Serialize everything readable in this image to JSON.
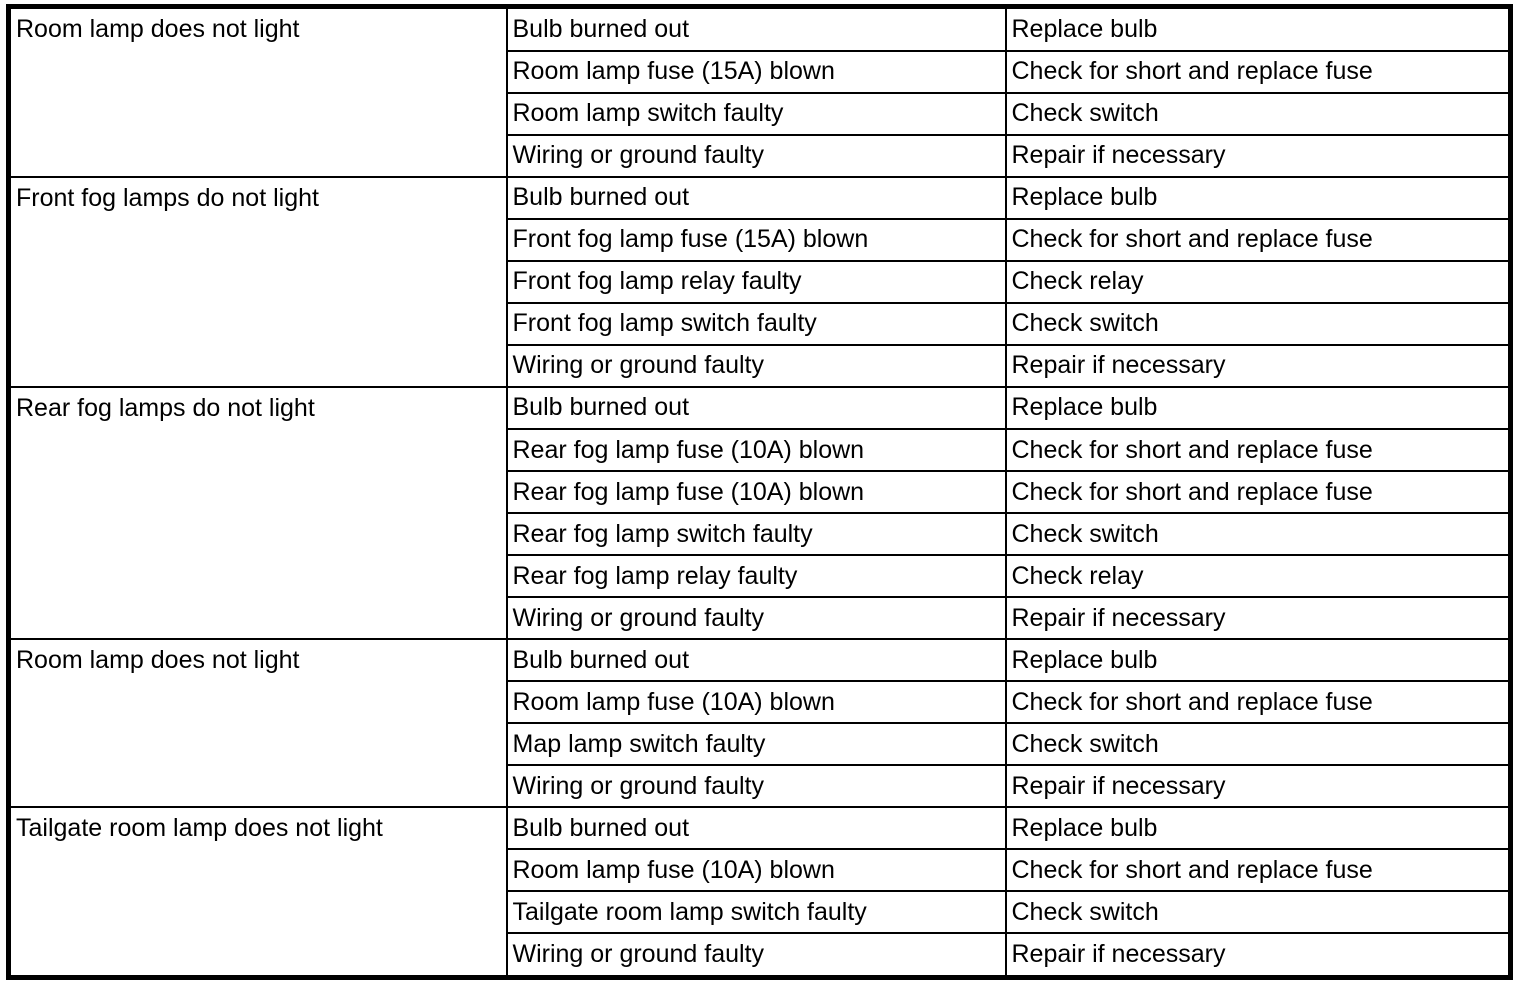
{
  "page": {
    "background_color": "#ffffff",
    "border_color": "#000000"
  },
  "table": {
    "columns": [
      "symptom",
      "probable_cause",
      "remedy"
    ],
    "sections": [
      {
        "symptom": "Room lamp does not light",
        "rows": [
          {
            "cause": "Bulb burned out",
            "remedy": "Replace bulb"
          },
          {
            "cause": "Room lamp fuse (15A) blown",
            "remedy": "Check for short and replace fuse"
          },
          {
            "cause": "Room lamp switch faulty",
            "remedy": "Check switch"
          },
          {
            "cause": "Wiring or ground faulty",
            "remedy": "Repair if necessary"
          }
        ]
      },
      {
        "symptom": "Front fog lamps do not light",
        "rows": [
          {
            "cause": "Bulb burned out",
            "remedy": "Replace bulb"
          },
          {
            "cause": "Front fog lamp fuse (15A) blown",
            "remedy": "Check for short and replace fuse"
          },
          {
            "cause": "Front fog lamp relay faulty",
            "remedy": "Check relay"
          },
          {
            "cause": "Front fog lamp switch faulty",
            "remedy": "Check switch"
          },
          {
            "cause": "Wiring or ground faulty",
            "remedy": "Repair if necessary"
          }
        ]
      },
      {
        "symptom": "Rear fog lamps do not light",
        "rows": [
          {
            "cause": "Bulb burned out",
            "remedy": "Replace bulb"
          },
          {
            "cause": "Rear fog lamp fuse (10A) blown",
            "remedy": "Check for short and replace fuse"
          },
          {
            "cause": "Rear fog lamp fuse (10A) blown",
            "remedy": "Check for short and replace fuse"
          },
          {
            "cause": "Rear fog lamp switch faulty",
            "remedy": "Check switch"
          },
          {
            "cause": "Rear fog lamp relay faulty",
            "remedy": "Check relay"
          },
          {
            "cause": "Wiring or ground faulty",
            "remedy": "Repair if necessary"
          }
        ]
      },
      {
        "symptom": "Room lamp does not light",
        "rows": [
          {
            "cause": "Bulb burned out",
            "remedy": "Replace bulb"
          },
          {
            "cause": "Room lamp fuse (10A) blown",
            "remedy": "Check for short and replace fuse"
          },
          {
            "cause": "Map lamp switch faulty",
            "remedy": "Check switch"
          },
          {
            "cause": "Wiring or ground faulty",
            "remedy": "Repair if necessary"
          }
        ]
      },
      {
        "symptom": "Tailgate room lamp does not light",
        "rows": [
          {
            "cause": "Bulb burned out",
            "remedy": "Replace bulb"
          },
          {
            "cause": "Room lamp fuse (10A) blown",
            "remedy": "Check for short and replace fuse"
          },
          {
            "cause": "Tailgate room lamp switch faulty",
            "remedy": "Check switch"
          },
          {
            "cause": "Wiring or ground faulty",
            "remedy": "Repair if necessary"
          }
        ]
      }
    ]
  }
}
